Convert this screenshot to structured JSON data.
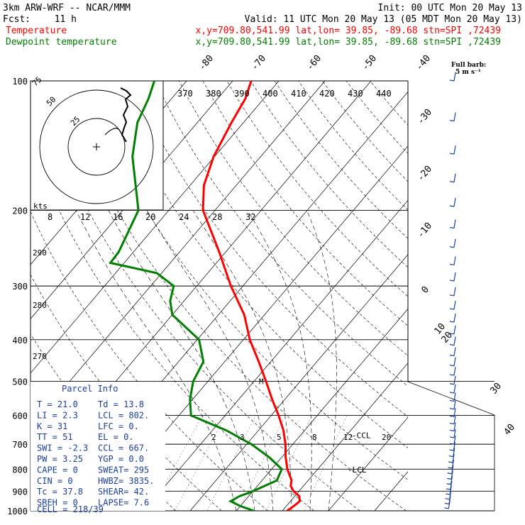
{
  "header": {
    "model": "3km ARW-WRF -- NCAR/MMM",
    "init": "Init: 00 UTC Mon 20 May 13",
    "fcst_label": "Fcst:",
    "fcst_value": "11 h",
    "valid": "Valid: 11 UTC Mon 20 May 13 (05 MDT Mon 20 May 13)",
    "temp_label": "Temperature",
    "temp_info": "x,y=709.80,541.99   lat,lon= 39.85, -89.68   stn=SPI ,72439",
    "dew_label": "Dewpoint temperature",
    "dew_info": "x,y=709.80,541.99   lat,lon= 39.85, -89.68   stn=SPI ,72439",
    "barb_label": "Full barb:",
    "barb_units": "5 m s⁻¹"
  },
  "colors": {
    "temperature": "#ff0000",
    "dewpoint": "#008000",
    "panel_text": "#1a3fa0"
  },
  "chart_data": {
    "type": "line",
    "diagram": "skew-T log-p",
    "pressure_levels_hPa": [
      100,
      200,
      300,
      400,
      500,
      600,
      700,
      800,
      900,
      1000
    ],
    "pressure_labels": [
      "100",
      "200",
      "300",
      "400",
      "500",
      "600",
      "700",
      "800",
      "900",
      "1000"
    ],
    "isotherm_labels": [
      "-80",
      "-70",
      "-60",
      "-50",
      "-40",
      "-30",
      "-20",
      "-10",
      "0",
      "10",
      "20",
      "30",
      "40"
    ],
    "theta_labels": [
      "370",
      "380",
      "390",
      "400",
      "410",
      "420",
      "430",
      "440"
    ],
    "theta_left_labels": [
      "290",
      "280",
      "270"
    ],
    "hodo_speed_labels": [
      "8",
      "12",
      "16",
      "20",
      "24",
      "28",
      "32"
    ],
    "hodo_ring_labels": [
      "75",
      "50",
      "25"
    ],
    "hodo_units": "kts",
    "mixing_ratio_labels": [
      "2",
      "3",
      "5",
      "8",
      "12",
      "20"
    ],
    "series": [
      {
        "name": "Temperature",
        "points": [
          {
            "p": 1000,
            "t": 21.0
          },
          {
            "p": 975,
            "t": 21.6
          },
          {
            "p": 950,
            "t": 22.0
          },
          {
            "p": 925,
            "t": 21.0
          },
          {
            "p": 900,
            "t": 18.8
          },
          {
            "p": 875,
            "t": 17.2
          },
          {
            "p": 850,
            "t": 16.4
          },
          {
            "p": 800,
            "t": 13.4
          },
          {
            "p": 750,
            "t": 10.8
          },
          {
            "p": 700,
            "t": 8.4
          },
          {
            "p": 650,
            "t": 5.4
          },
          {
            "p": 600,
            "t": 1.6
          },
          {
            "p": 550,
            "t": -2.8
          },
          {
            "p": 500,
            "t": -7.4
          },
          {
            "p": 450,
            "t": -12.6
          },
          {
            "p": 400,
            "t": -18.6
          },
          {
            "p": 350,
            "t": -24.4
          },
          {
            "p": 300,
            "t": -32.6
          },
          {
            "p": 250,
            "t": -41.4
          },
          {
            "p": 200,
            "t": -52.6
          },
          {
            "p": 175,
            "t": -57.0
          },
          {
            "p": 150,
            "t": -60.2
          },
          {
            "p": 125,
            "t": -62.6
          },
          {
            "p": 110,
            "t": -64.0
          },
          {
            "p": 100,
            "t": -66.0
          }
        ]
      },
      {
        "name": "Dewpoint temperature",
        "points": [
          {
            "p": 1000,
            "td": 13.8
          },
          {
            "p": 975,
            "td": 10.0
          },
          {
            "p": 950,
            "td": 7.0
          },
          {
            "p": 925,
            "td": 8.0
          },
          {
            "p": 900,
            "td": 10.0
          },
          {
            "p": 850,
            "td": 13.2
          },
          {
            "p": 800,
            "td": 12.2
          },
          {
            "p": 750,
            "td": 7.2
          },
          {
            "p": 700,
            "td": 1.0
          },
          {
            "p": 650,
            "td": -7.0
          },
          {
            "p": 600,
            "td": -17.4
          },
          {
            "p": 550,
            "td": -20.6
          },
          {
            "p": 500,
            "td": -23.2
          },
          {
            "p": 450,
            "td": -24.6
          },
          {
            "p": 400,
            "td": -29.6
          },
          {
            "p": 350,
            "td": -40.0
          },
          {
            "p": 325,
            "td": -43.0
          },
          {
            "p": 300,
            "td": -45.0
          },
          {
            "p": 280,
            "td": -51.0
          },
          {
            "p": 265,
            "td": -63.0
          },
          {
            "p": 250,
            "td": -63.2
          },
          {
            "p": 225,
            "td": -64.8
          },
          {
            "p": 200,
            "td": -66.6
          },
          {
            "p": 175,
            "td": -71.8
          },
          {
            "p": 150,
            "td": -77.8
          },
          {
            "p": 125,
            "td": -83.0
          },
          {
            "p": 110,
            "td": -85.0
          },
          {
            "p": 100,
            "td": -87.0
          }
        ]
      }
    ],
    "annotations": [
      {
        "label": "CCL",
        "p": 667
      },
      {
        "label": "LCL",
        "p": 802
      },
      {
        "label": "M",
        "p": 500
      }
    ]
  },
  "parcel_info": {
    "title": "Parcel Info",
    "rows": [
      [
        "T   =   21.0",
        "Td  =  13.8"
      ],
      [
        "LI  =    2.3",
        "LCL =  802."
      ],
      [
        "K   =     31",
        "LFC =    0."
      ],
      [
        "TT  =     51",
        "EL  =    0."
      ],
      [
        "SWI =   -2.3",
        "CCL =  667."
      ],
      [
        "PW  =   3.25",
        "YGP =   0.0"
      ],
      [
        "CAPE =     0",
        "SWEAT=  295"
      ],
      [
        "CIN  =     0",
        "HWBZ= 3835."
      ],
      [
        "Tc  =   37.8",
        "SHEAR=  42."
      ],
      [
        "SREH =     0",
        "LAPSE=  7.6"
      ]
    ],
    "cell": "CELL = 218/39"
  }
}
